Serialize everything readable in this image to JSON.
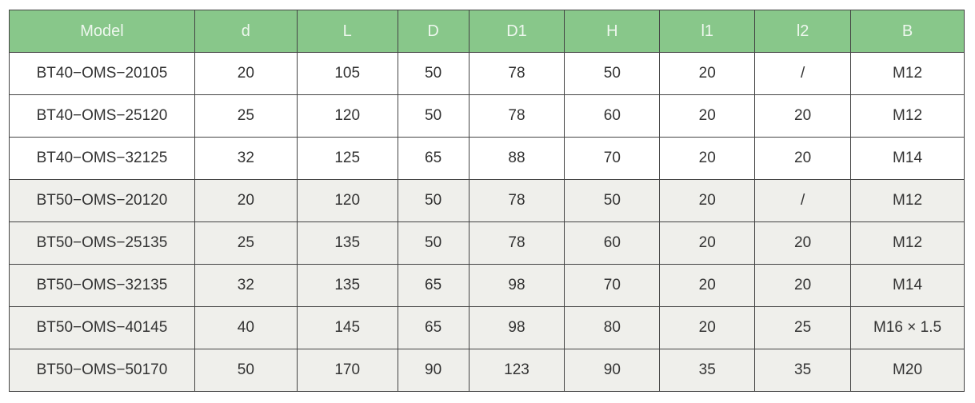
{
  "colors": {
    "header": "#88c78a",
    "alt_row": "#efefeb"
  },
  "headers": [
    "Model",
    "d",
    "L",
    "D",
    "D1",
    "H",
    "l1",
    "l2",
    "B"
  ],
  "rows": [
    [
      "BT40−OMS−20105",
      "20",
      "105",
      "50",
      "78",
      "50",
      "20",
      "/",
      "M12"
    ],
    [
      "BT40−OMS−25120",
      "25",
      "120",
      "50",
      "78",
      "60",
      "20",
      "20",
      "M12"
    ],
    [
      "BT40−OMS−32125",
      "32",
      "125",
      "65",
      "88",
      "70",
      "20",
      "20",
      "M14"
    ],
    [
      "BT50−OMS−20120",
      "20",
      "120",
      "50",
      "78",
      "50",
      "20",
      "/",
      "M12"
    ],
    [
      "BT50−OMS−25135",
      "25",
      "135",
      "50",
      "78",
      "60",
      "20",
      "20",
      "M12"
    ],
    [
      "BT50−OMS−32135",
      "32",
      "135",
      "65",
      "98",
      "70",
      "20",
      "20",
      "M14"
    ],
    [
      "BT50−OMS−40145",
      "40",
      "145",
      "65",
      "98",
      "80",
      "20",
      "25",
      "M16 × 1.5"
    ],
    [
      "BT50−OMS−50170",
      "50",
      "170",
      "90",
      "123",
      "90",
      "35",
      "35",
      "M20"
    ]
  ]
}
